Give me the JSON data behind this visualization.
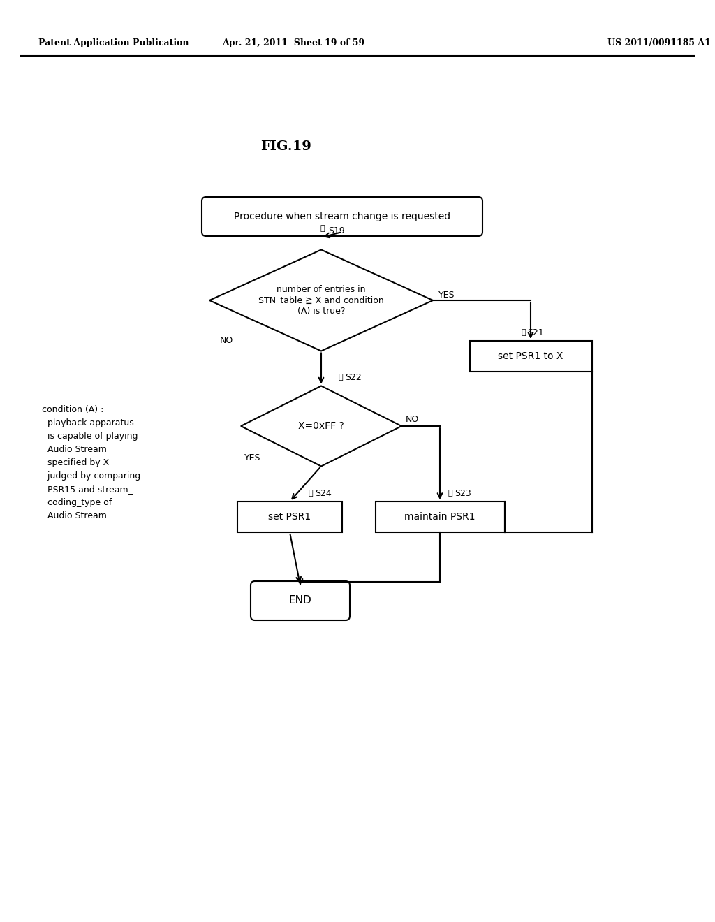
{
  "title": "FIG.19",
  "header_left": "Patent Application Publication",
  "header_mid": "Apr. 21, 2011  Sheet 19 of 59",
  "header_right": "US 2011/0091185 A1",
  "background_color": "#ffffff",
  "fig_width": 10.24,
  "fig_height": 13.2,
  "dpi": 100,
  "start_text": "Procedure when stream change is requested",
  "d1_text": "number of entries in\nSTN_table ≧ X and condition\n(A) is true?",
  "d1_label": "S19",
  "r21_text": "set PSR1 to X",
  "r21_label": "S21",
  "d2_text": "X=0xFF ?",
  "d2_label": "S22",
  "r24_text": "set PSR1",
  "r24_label": "S24",
  "r23_text": "maintain PSR1",
  "r23_label": "S23",
  "end_text": "END",
  "note_text": "condition (A) :\n  playback apparatus\n  is capable of playing\n  Audio Stream\n  specified by X\n  judged by comparing\n  PSR15 and stream_\n  coding_type of\n  Audio Stream",
  "lw": 1.5
}
